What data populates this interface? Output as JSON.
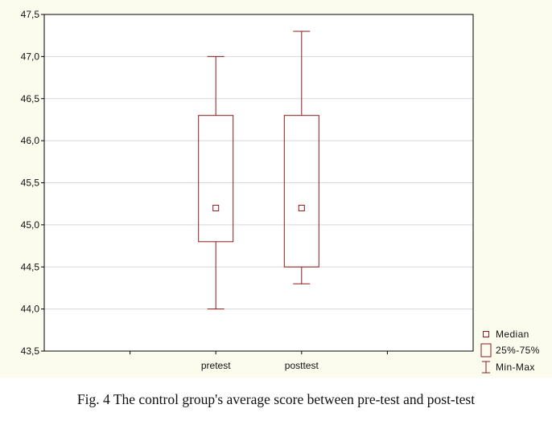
{
  "caption": "Fig. 4 The control group's average score between pre-test and post-test",
  "colors": {
    "box_stroke": "#8b1a1a",
    "panel_background": "#fcfcee",
    "plot_background": "#ffffff",
    "grid": "#d8d8d8"
  },
  "chart_data": {
    "type": "box",
    "title": "",
    "xlabel": "",
    "ylabel": "",
    "categories": [
      "pretest",
      "posttest"
    ],
    "ylim": [
      43.5,
      47.5
    ],
    "y_ticks": [
      43.5,
      44.0,
      44.5,
      45.0,
      45.5,
      46.0,
      46.5,
      47.0,
      47.5
    ],
    "y_tick_labels": [
      "43,5",
      "44,0",
      "44,5",
      "45,0",
      "45,5",
      "46,0",
      "46,5",
      "47,0",
      "47,5"
    ],
    "grid": true,
    "series": [
      {
        "category": "pretest",
        "min": 44.0,
        "q1": 44.8,
        "median": 45.2,
        "q3": 46.3,
        "max": 47.0
      },
      {
        "category": "posttest",
        "min": 44.3,
        "q1": 44.5,
        "median": 45.2,
        "q3": 46.3,
        "max": 47.3
      }
    ],
    "legend": {
      "position": "bottom-right",
      "entries": [
        {
          "symbol": "median-marker",
          "label": "Median"
        },
        {
          "symbol": "box",
          "label": "25%-75%"
        },
        {
          "symbol": "whisker",
          "label": "Min-Max"
        }
      ]
    }
  }
}
